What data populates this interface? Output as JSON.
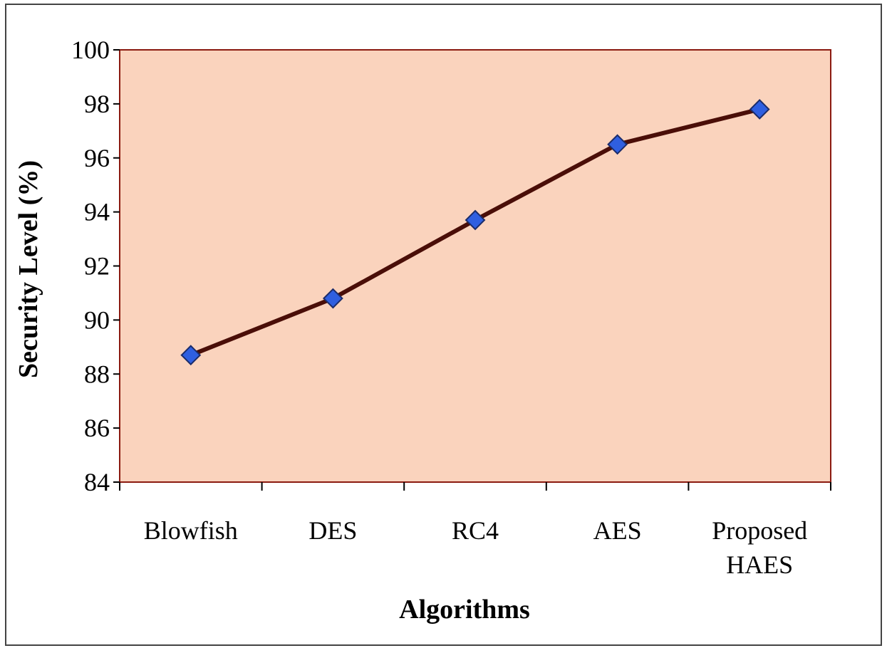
{
  "chart_data": {
    "type": "line",
    "title": "",
    "xlabel": "Algorithms",
    "ylabel": "Security Level (%)",
    "categories": [
      [
        "Blowfish"
      ],
      [
        "DES"
      ],
      [
        "RC4"
      ],
      [
        "AES"
      ],
      [
        "Proposed",
        "HAES"
      ]
    ],
    "series": [
      {
        "values": [
          88.7,
          90.8,
          93.7,
          96.5,
          97.8
        ]
      }
    ],
    "ylim": [
      84,
      100
    ],
    "yticks": [
      "84",
      "86",
      "88",
      "90",
      "92",
      "94",
      "96",
      "98",
      "100"
    ],
    "grid": false,
    "legend": "none",
    "colors": {
      "plot_background": "#fad3bd",
      "plot_border": "#8b1a10",
      "line": "#4a0e08",
      "marker_fill": "#2f5fe0",
      "marker_stroke": "#1b2c6a",
      "frame_border": "#444444"
    }
  }
}
